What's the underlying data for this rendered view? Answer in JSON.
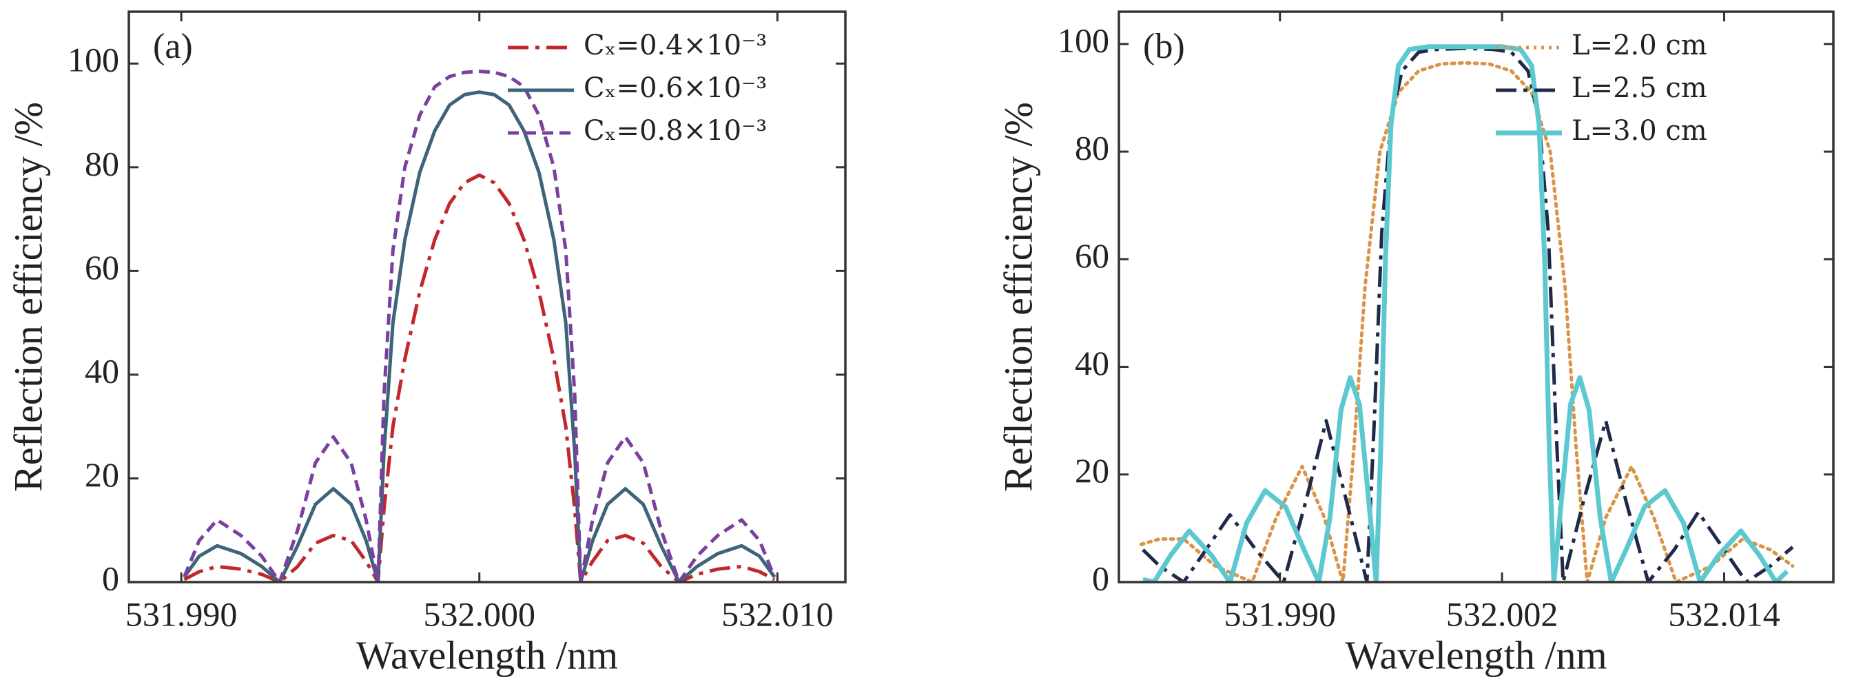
{
  "chart_data": [
    {
      "type": "line",
      "panel_label": "(a)",
      "x_label": "Wavelength /nm",
      "y_label": "Reflection efficiency /%",
      "xlim": [
        531.98824,
        532.01228
      ],
      "ylim": [
        0,
        110
      ],
      "xticks": [
        {
          "value": 531.99,
          "label": "531.990"
        },
        {
          "value": 532.0,
          "label": "532.000"
        },
        {
          "value": 532.01,
          "label": "532.010"
        }
      ],
      "yticks": [
        0,
        20,
        40,
        60,
        80,
        100
      ],
      "legend": "upper right",
      "x": [
        531.9901,
        531.9906,
        531.9912,
        531.992,
        531.9927,
        531.9933,
        531.9939,
        531.9945,
        531.9951,
        531.9957,
        531.9962,
        531.9966,
        531.9968,
        531.9971,
        531.9975,
        531.998,
        531.9985,
        531.999,
        531.9995,
        532.0,
        532.0005,
        532.001,
        532.0015,
        532.002,
        532.0025,
        532.0029,
        532.0032,
        532.0034,
        532.0038,
        532.0043,
        532.0049,
        532.0055,
        532.0061,
        532.0067,
        532.0073,
        532.008,
        532.0088,
        532.0094,
        532.0099
      ],
      "series": [
        {
          "name": "Cₓ=0.4×10⁻³",
          "color": "#c0282d",
          "dash": "dashdot",
          "values": [
            0.5,
            2,
            3,
            2.5,
            1.5,
            0,
            3,
            7.5,
            9,
            8,
            4,
            0,
            14,
            30,
            43,
            56,
            66,
            73,
            77,
            78.5,
            77,
            73,
            66,
            56,
            43,
            30,
            14,
            0,
            4,
            8,
            9,
            7.5,
            3,
            0,
            1.5,
            2.5,
            3,
            2,
            0.5
          ]
        },
        {
          "name": "Cₓ=0.6×10⁻³",
          "color": "#3d6478",
          "dash": "solid",
          "values": [
            1,
            5,
            7,
            5.5,
            3,
            0,
            7,
            15,
            18,
            15,
            8,
            0,
            25,
            50,
            66,
            79,
            87,
            92,
            94,
            94.5,
            94,
            92,
            87,
            79,
            66,
            50,
            25,
            0,
            8,
            15,
            18,
            15,
            7,
            0,
            3,
            5.5,
            7,
            5,
            1
          ]
        },
        {
          "name": "Cₓ=0.8×10⁻³",
          "color": "#7b3fa0",
          "dash": "dashed",
          "values": [
            1,
            8,
            12,
            9,
            5,
            0,
            10,
            23,
            28,
            23,
            12,
            0,
            36,
            64,
            80,
            90,
            95.5,
            97.5,
            98.3,
            98.5,
            98.3,
            97.5,
            95.5,
            90,
            80,
            64,
            36,
            0,
            12,
            23,
            28,
            23,
            10,
            0,
            5,
            9,
            12,
            8,
            1
          ]
        }
      ]
    },
    {
      "type": "line",
      "panel_label": "(b)",
      "x_label": "Wavelength /nm",
      "y_label": "Reflection efficiency /%",
      "xlim": [
        531.9813,
        532.0199
      ],
      "ylim": [
        0,
        106
      ],
      "xticks": [
        {
          "value": 531.99,
          "label": "531.990"
        },
        {
          "value": 532.002,
          "label": "532.002"
        },
        {
          "value": 532.014,
          "label": "532.014"
        }
      ],
      "yticks": [
        0,
        20,
        40,
        60,
        80,
        100
      ],
      "legend": "upper right",
      "series": [
        {
          "name": "L=2.0 cm",
          "color": "#d9944a",
          "dash": "dotted",
          "x": [
            531.9825,
            531.9835,
            531.9848,
            531.9865,
            531.9885,
            531.9898,
            531.9912,
            531.9924,
            531.9934,
            531.994,
            531.9946,
            531.9954,
            531.9964,
            531.9975,
            531.9987,
            532,
            532.0013,
            532.0025,
            532.0036,
            532.0046,
            532.0054,
            532.006,
            532.0066,
            532.0076,
            532.009,
            532.0102,
            532.0114,
            532.0133,
            532.015,
            532.0165,
            532.0177
          ],
          "values": [
            7,
            8,
            8,
            3,
            0,
            12,
            21.5,
            12,
            0,
            25,
            55,
            80,
            91,
            95,
            96.3,
            96.5,
            96.3,
            95,
            91,
            80,
            55,
            25,
            0,
            12,
            21.5,
            12,
            0,
            3,
            8,
            6,
            3
          ]
        },
        {
          "name": "L=2.5 cm",
          "color": "#1f2a4a",
          "dash": "dashdot",
          "x": [
            531.9826,
            531.9835,
            531.9848,
            531.986,
            531.9873,
            531.9887,
            531.9902,
            531.9914,
            531.9925,
            531.9936,
            531.9947,
            531.9951,
            531.9955,
            531.996,
            531.9966,
            531.9975,
            531.9985,
            532,
            532.0015,
            532.0025,
            532.0034,
            532.004,
            532.0045,
            532.0049,
            532.0053,
            532.0064,
            532.0076,
            532.0087,
            532.0099,
            532.0113,
            532.0126,
            532.014,
            532.0152,
            532.0165,
            532.0177
          ],
          "values": [
            6,
            3,
            0,
            6,
            12.5,
            6,
            0,
            15,
            30,
            15,
            0,
            30,
            65,
            86,
            95,
            98.5,
            99,
            99.2,
            99,
            98.5,
            95,
            86,
            65,
            30,
            0,
            15,
            30,
            15,
            0,
            6,
            13,
            6,
            0,
            3,
            6.5
          ]
        },
        {
          "name": "L=3.0 cm",
          "color": "#5cc8d0",
          "dash": "solid",
          "x": [
            531.9826,
            531.9832,
            531.9841,
            531.9851,
            531.9863,
            531.9873,
            531.9882,
            531.9892,
            531.9903,
            531.9913,
            531.9921,
            531.9927,
            531.9933,
            531.9938,
            531.9943,
            531.9948,
            531.9952,
            531.99545,
            531.9957,
            531.996,
            531.9964,
            531.997,
            531.998,
            532,
            532.002,
            532.003,
            532.0036,
            532.004,
            532.0043,
            532.00455,
            532.0048,
            532.0052,
            532.0057,
            532.0062,
            532.0067,
            532.0073,
            532.0079,
            532.0087,
            532.0097,
            532.0108,
            532.0118,
            532.0127,
            532.0137,
            532.0149,
            532.0159,
            532.0168,
            532.0174
          ],
          "values": [
            0.5,
            0,
            5,
            9.5,
            5,
            0,
            11,
            17,
            14,
            6,
            0,
            12,
            32,
            38,
            33,
            15,
            0,
            25,
            60,
            85,
            96,
            99,
            99.5,
            99.5,
            99.5,
            99,
            96,
            85,
            60,
            25,
            0,
            15,
            33,
            38,
            32,
            12,
            0,
            6,
            14,
            17,
            11,
            0,
            5,
            9.5,
            5,
            0,
            2
          ]
        }
      ]
    }
  ]
}
